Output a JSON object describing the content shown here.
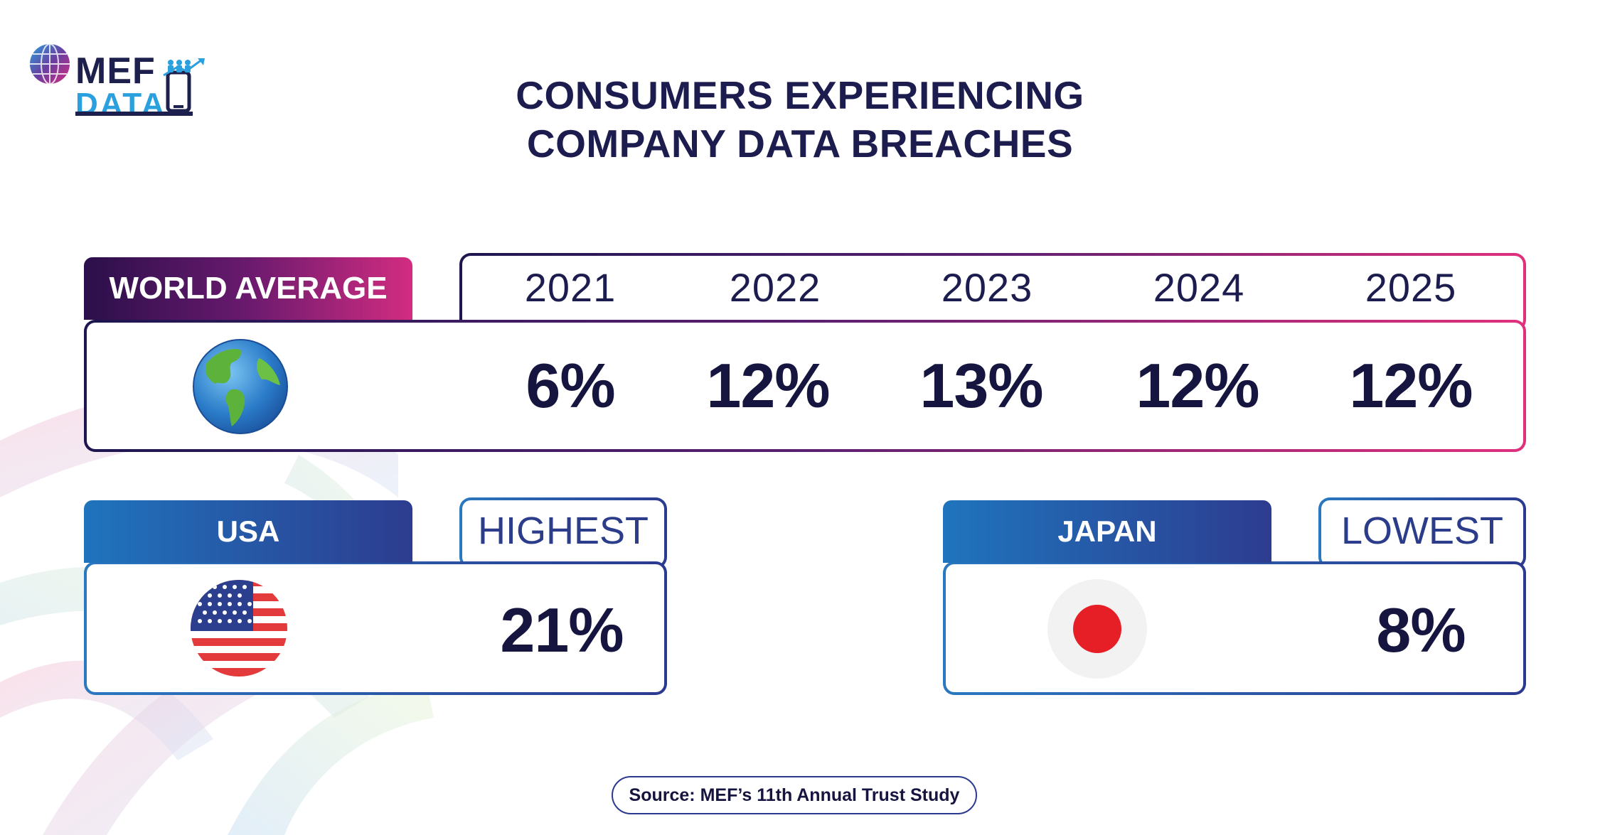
{
  "brand": {
    "logo_top": "MEF",
    "logo_bottom": "DATA",
    "colors": {
      "navy": "#1d1f4d",
      "blue": "#2aa0de",
      "pink": "#d32c80",
      "purple": "#2a0f4a"
    }
  },
  "title_line1": "CONSUMERS EXPERIENCING",
  "title_line2": "COMPANY DATA BREACHES",
  "chart_data": {
    "type": "table",
    "title": "CONSUMERS EXPERIENCING COMPANY DATA BREACHES",
    "world": {
      "label": "WORLD AVERAGE",
      "icon": "globe-icon",
      "years": [
        "2021",
        "2022",
        "2023",
        "2024",
        "2025"
      ],
      "values": [
        "6%",
        "12%",
        "13%",
        "12%",
        "12%"
      ]
    },
    "usa": {
      "label": "USA",
      "tag": "HIGHEST",
      "value": "21%",
      "icon": "usa-flag-icon"
    },
    "japan": {
      "label": "JAPAN",
      "tag": "LOWEST",
      "value": "8%",
      "icon": "japan-flag-icon"
    }
  },
  "source": "Source: MEF’s 11th Annual Trust Study"
}
